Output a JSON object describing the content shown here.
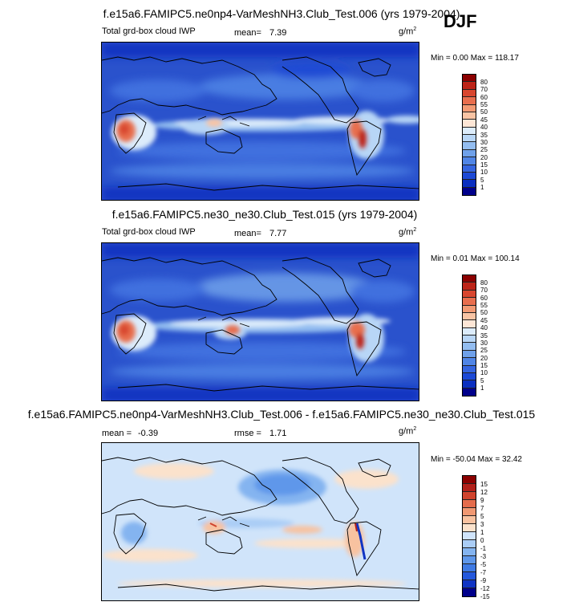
{
  "season": "DJF",
  "colors": {
    "abs_scale": [
      "#00008b",
      "#0a2fc0",
      "#1c49d6",
      "#3565e0",
      "#5085e6",
      "#6fa1ea",
      "#93bdf0",
      "#b8d6f6",
      "#dcecfb",
      "#fde6d6",
      "#f9c4a4",
      "#f29a74",
      "#e86e4e",
      "#d8462f",
      "#bd2418",
      "#8b0000"
    ],
    "diff_scale": [
      "#00008b",
      "#1034c4",
      "#2458dc",
      "#3e7ae4",
      "#5e97ea",
      "#84b4f0",
      "#aacdf6",
      "#d0e4fa",
      "#fbe2cc",
      "#f8c2a0",
      "#f09872",
      "#e46c4c",
      "#d0432d",
      "#b2201a",
      "#8b0000"
    ],
    "map_base": "#2a52cc",
    "diff_base": "#cfe1f7"
  },
  "panels": [
    {
      "id": "test",
      "title": "f.e15a6.FAMIPC5.ne0np4-VarMeshNH3.Club_Test.006 (yrs 1979-2004)",
      "left_label": "Total grd-box cloud IWP",
      "mean_label": "mean=",
      "mean_value": "7.39",
      "units": "g/m",
      "units_sup": "2",
      "min_label": "Min =",
      "min_value": "0.00",
      "max_label": "Max =",
      "max_value": "118.17",
      "colorbar_ticks": [
        "80",
        "70",
        "60",
        "55",
        "50",
        "45",
        "40",
        "35",
        "30",
        "25",
        "20",
        "15",
        "10",
        "5",
        "1"
      ]
    },
    {
      "id": "control",
      "title": "f.e15a6.FAMIPC5.ne30_ne30.Club_Test.015 (yrs 1979-2004)",
      "left_label": "Total grd-box cloud IWP",
      "mean_label": "mean=",
      "mean_value": "7.77",
      "units": "g/m",
      "units_sup": "2",
      "min_label": "Min =",
      "min_value": "0.01",
      "max_label": "Max =",
      "max_value": "100.14",
      "colorbar_ticks": [
        "80",
        "70",
        "60",
        "55",
        "50",
        "45",
        "40",
        "35",
        "30",
        "25",
        "20",
        "15",
        "10",
        "5",
        "1"
      ]
    },
    {
      "id": "diff",
      "title": "f.e15a6.FAMIPC5.ne0np4-VarMeshNH3.Club_Test.006 - f.e15a6.FAMIPC5.ne30_ne30.Club_Test.015",
      "left_label": "mean =",
      "mean_value": "-0.39",
      "rmse_label": "rmse =",
      "rmse_value": "1.71",
      "units": "g/m",
      "units_sup": "2",
      "min_label": "Min =",
      "min_value": "-50.04",
      "max_label": "Max =",
      "max_value": "32.42",
      "colorbar_ticks": [
        "15",
        "12",
        "9",
        "7",
        "5",
        "3",
        "1",
        "0",
        "-1",
        "-3",
        "-5",
        "-7",
        "-9",
        "-12",
        "-15"
      ]
    }
  ],
  "chart_data": [
    {
      "type": "heatmap",
      "title": "f.e15a6.FAMIPC5.ne0np4-VarMeshNH3.Club_Test.006 (yrs 1979-2004)",
      "variable": "Total grd-box cloud IWP",
      "units": "g/m2",
      "mean": 7.39,
      "min": 0.0,
      "max": 118.17,
      "contour_levels": [
        1,
        5,
        10,
        15,
        20,
        25,
        30,
        35,
        40,
        45,
        50,
        55,
        60,
        70,
        80
      ]
    },
    {
      "type": "heatmap",
      "title": "f.e15a6.FAMIPC5.ne30_ne30.Club_Test.015 (yrs 1979-2004)",
      "variable": "Total grd-box cloud IWP",
      "units": "g/m2",
      "mean": 7.77,
      "min": 0.01,
      "max": 100.14,
      "contour_levels": [
        1,
        5,
        10,
        15,
        20,
        25,
        30,
        35,
        40,
        45,
        50,
        55,
        60,
        70,
        80
      ]
    },
    {
      "type": "heatmap",
      "title": "f.e15a6.FAMIPC5.ne0np4-VarMeshNH3.Club_Test.006 - f.e15a6.FAMIPC5.ne30_ne30.Club_Test.015",
      "units": "g/m2",
      "mean": -0.39,
      "rmse": 1.71,
      "min": -50.04,
      "max": 32.42,
      "contour_levels": [
        -15,
        -12,
        -9,
        -7,
        -5,
        -3,
        -1,
        0,
        1,
        3,
        5,
        7,
        9,
        12,
        15
      ]
    }
  ]
}
